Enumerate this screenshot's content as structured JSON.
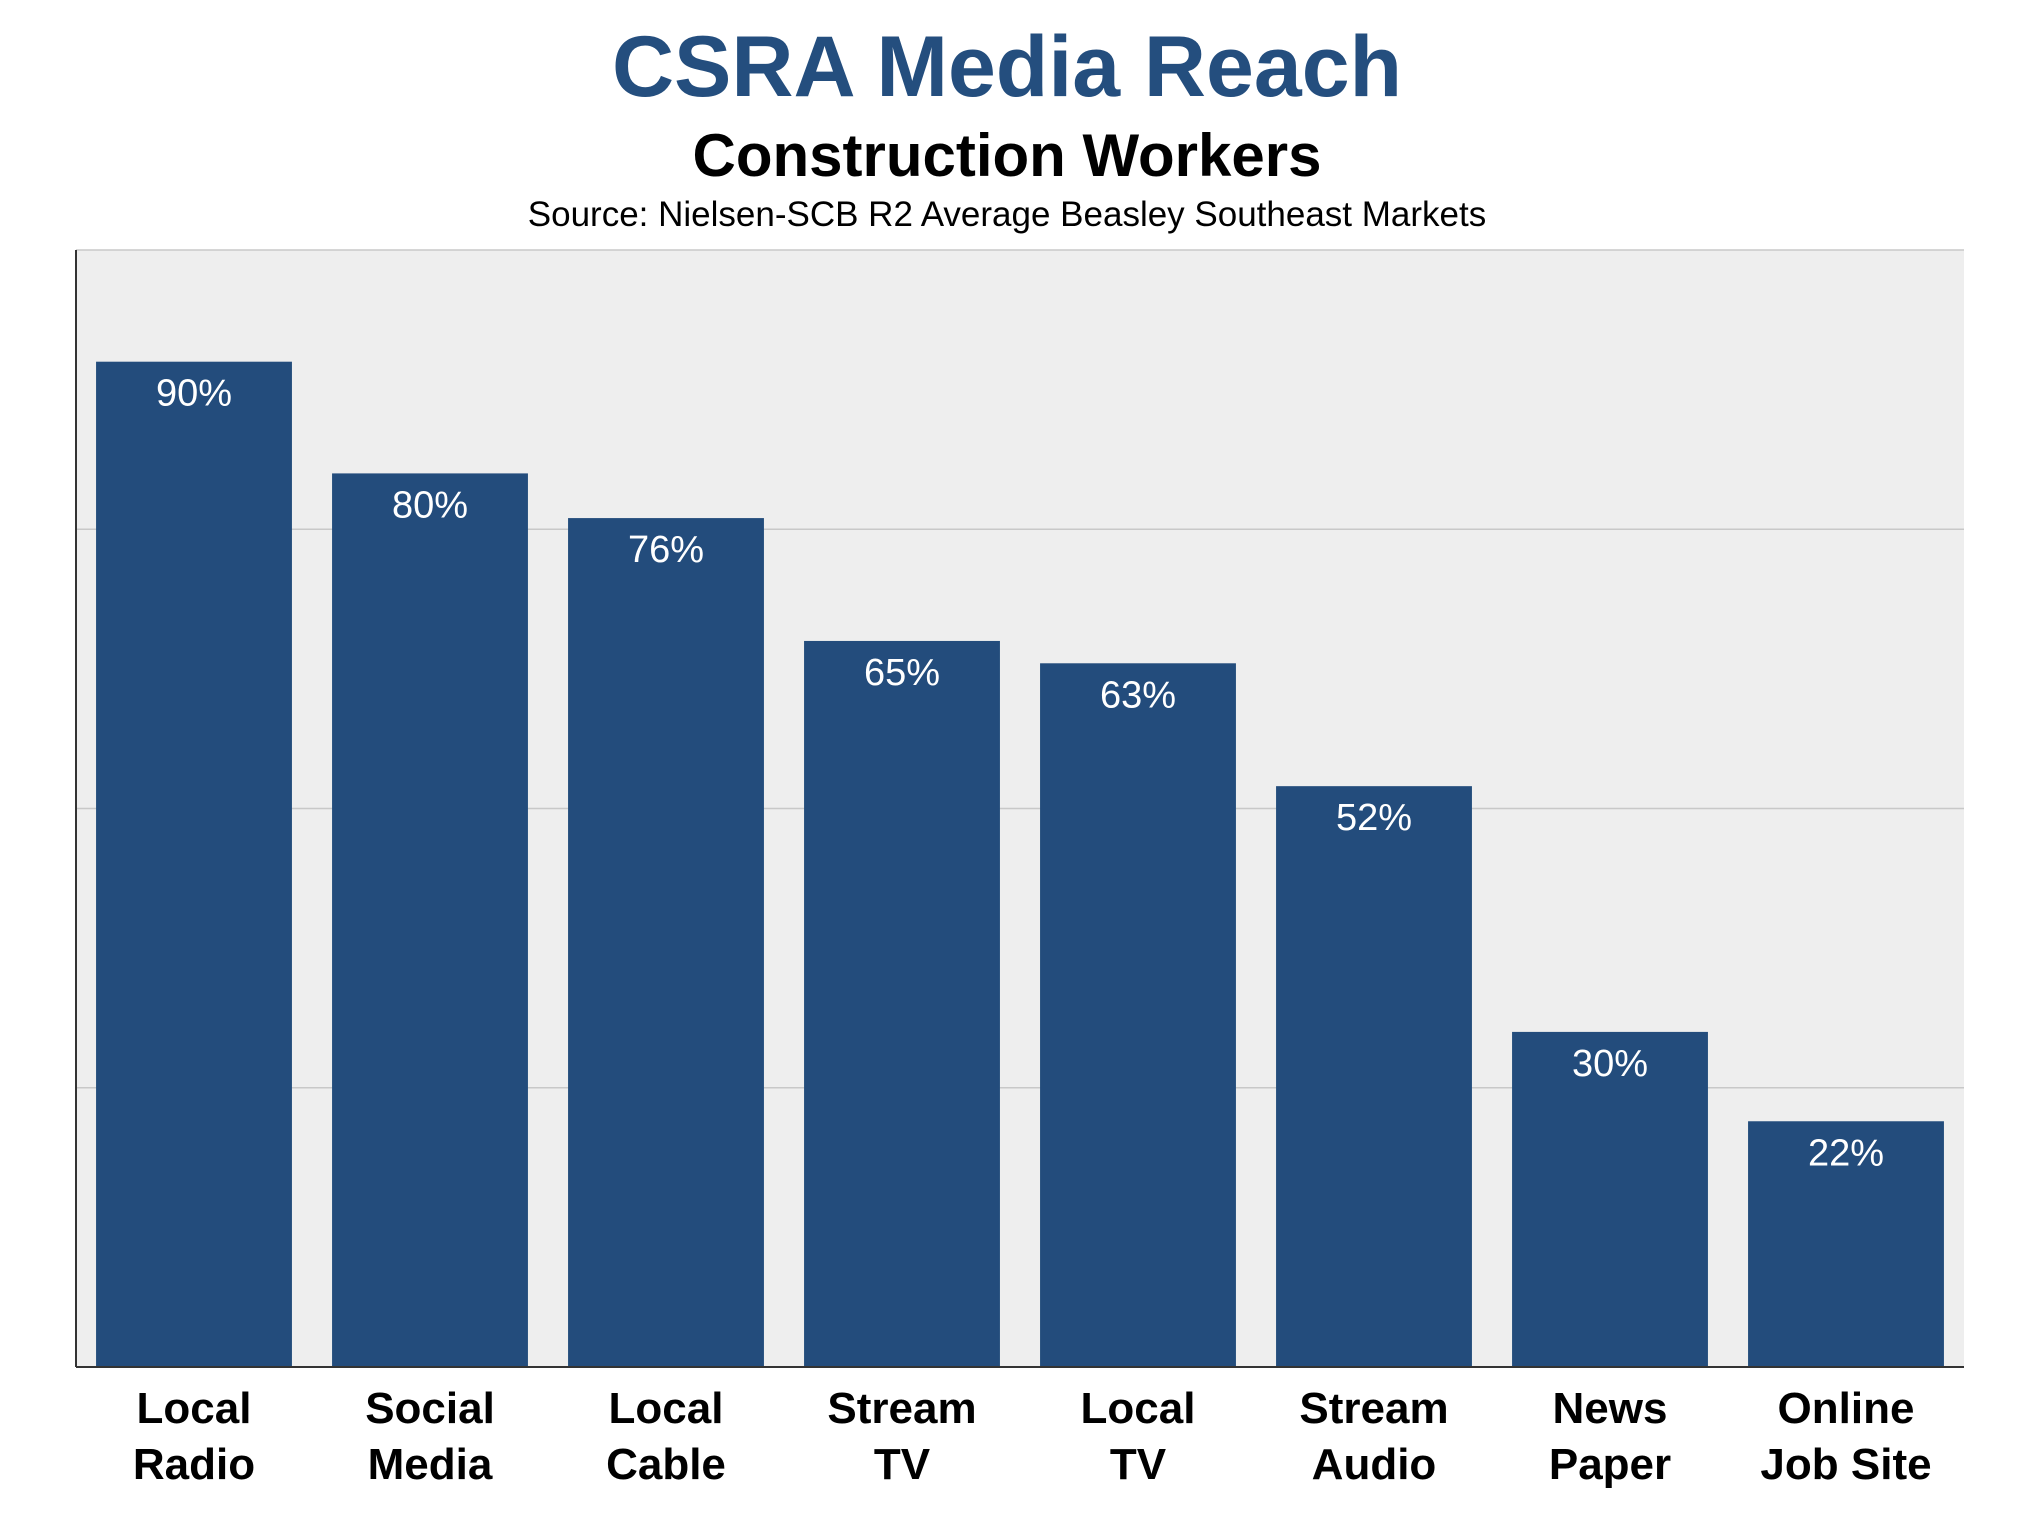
{
  "colors": {
    "title": "#244E7E",
    "bar": "#234C7C",
    "plot_background": "#EEEEEE",
    "gridline": "#C8C8C8",
    "axis": "#333333",
    "bar_label": "#FFFFFF"
  },
  "chart_data": {
    "type": "bar",
    "title": "CSRA Media Reach",
    "subtitle": "Construction Workers",
    "source": "Source: Nielsen-SCB R2 Average Beasley Southeast Markets",
    "xlabel": "",
    "ylabel": "",
    "ylim": [
      0,
      100
    ],
    "grid": true,
    "categories": [
      [
        "Local",
        "Radio"
      ],
      [
        "Social",
        "Media"
      ],
      [
        "Local",
        "Cable"
      ],
      [
        "Stream",
        "TV"
      ],
      [
        "Local",
        "TV"
      ],
      [
        "Stream",
        "Audio"
      ],
      [
        "News",
        "Paper"
      ],
      [
        "Online",
        "Job Site"
      ]
    ],
    "values": [
      90,
      80,
      76,
      65,
      63,
      52,
      30,
      22
    ],
    "value_labels": [
      "90%",
      "80%",
      "76%",
      "65%",
      "63%",
      "52%",
      "30%",
      "22%"
    ]
  }
}
